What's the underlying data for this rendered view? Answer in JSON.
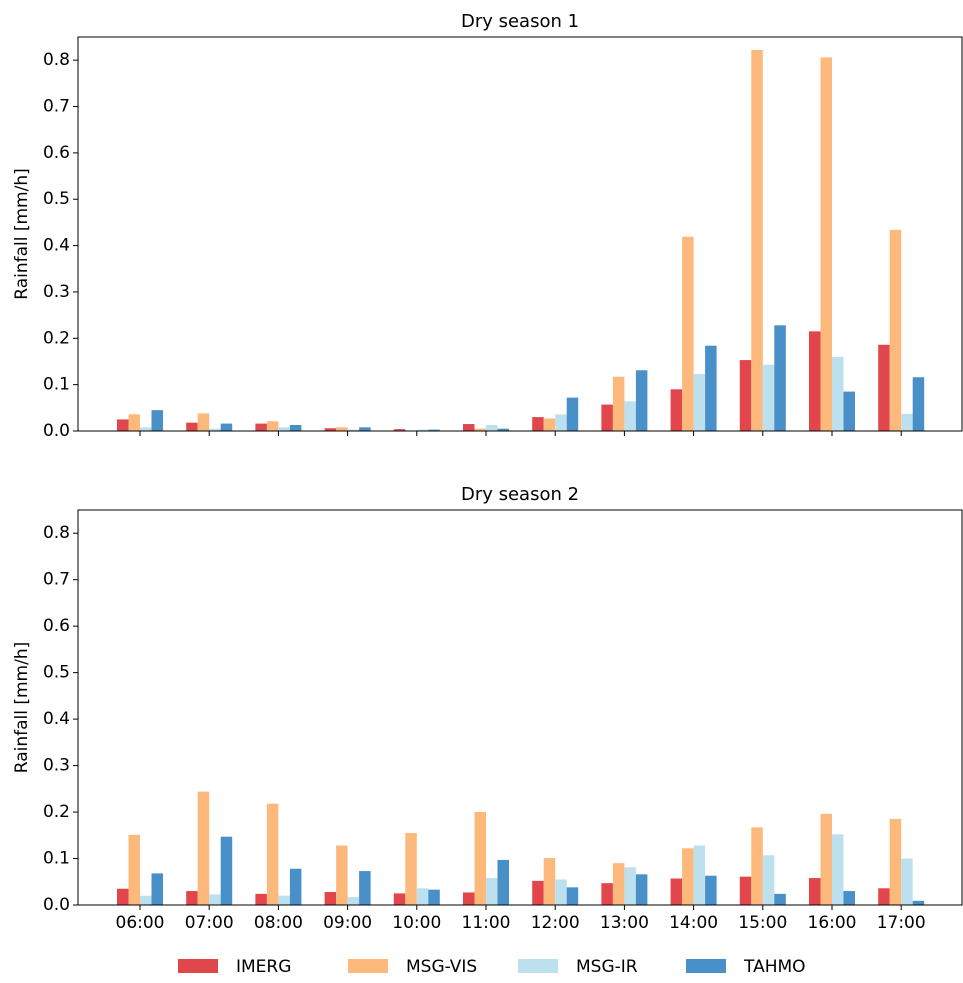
{
  "chart_data": [
    {
      "type": "bar",
      "title": "Dry season 1",
      "y_label": "Rainfall [mm/h]",
      "categories": [
        null,
        null,
        null,
        null,
        null,
        null,
        null,
        null,
        null,
        null,
        null,
        null
      ],
      "series": [
        {
          "name": "IMERG",
          "color": "#e0464b",
          "values": [
            0.025,
            0.018,
            0.016,
            0.006,
            0.004,
            0.015,
            0.03,
            0.057,
            0.09,
            0.153,
            0.215,
            0.186
          ]
        },
        {
          "name": "MSG-VIS",
          "color": "#fdb97c",
          "values": [
            0.036,
            0.038,
            0.021,
            0.008,
            0.001,
            0.005,
            0.027,
            0.117,
            0.419,
            0.822,
            0.806,
            0.434
          ]
        },
        {
          "name": "MSG-IR",
          "color": "#bde0ee",
          "values": [
            0.008,
            0.005,
            0.008,
            0.003,
            0.003,
            0.013,
            0.036,
            0.064,
            0.123,
            0.143,
            0.16,
            0.037
          ]
        },
        {
          "name": "TAHMO",
          "color": "#4a90c8",
          "values": [
            0.045,
            0.016,
            0.013,
            0.008,
            0.003,
            0.005,
            0.072,
            0.131,
            0.184,
            0.228,
            0.085,
            0.116
          ]
        }
      ],
      "ylim": [
        0,
        0.85
      ],
      "yticks": [
        {
          "value": 0,
          "label": "0.0"
        },
        0.1,
        0.2,
        0.3,
        0.4,
        0.5,
        0.6,
        0.7,
        0.8
      ]
    },
    {
      "type": "bar",
      "title": "Dry season 2",
      "y_label": "Rainfall [mm/h]",
      "categories": [
        "06:00",
        "07:00",
        "08:00",
        "09:00",
        "10:00",
        "11:00",
        "12:00",
        "13:00",
        "14:00",
        "15:00",
        "16:00",
        "17:00"
      ],
      "series": [
        {
          "color": "#e0464b",
          "values": [
            0.035,
            0.03,
            0.024,
            0.028,
            0.025,
            0.027,
            0.052,
            0.047,
            0.057,
            0.061,
            0.058,
            0.036
          ]
        },
        {
          "color": "#fdb97c",
          "values": [
            0.151,
            0.244,
            0.218,
            0.128,
            0.155,
            0.2,
            0.101,
            0.09,
            0.122,
            0.167,
            0.196,
            0.185
          ]
        },
        {
          "color": "#bde0ee",
          "values": [
            0.02,
            0.023,
            0.02,
            0.017,
            0.036,
            0.058,
            0.055,
            0.081,
            0.128,
            0.107,
            0.152,
            0.1
          ]
        },
        {
          "color": "#4a90c8",
          "values": [
            0.068,
            0.147,
            0.078,
            0.073,
            0.033,
            0.097,
            0.038,
            0.066,
            0.063,
            0.024,
            0.03,
            0.009
          ]
        }
      ],
      "ylim": [
        0,
        0.85
      ],
      "yticks": [
        {
          "value": 0,
          "label": "0.0"
        },
        0.1,
        0.2,
        0.3,
        0.4,
        0.5,
        0.6,
        0.7,
        0.8
      ]
    }
  ]
}
